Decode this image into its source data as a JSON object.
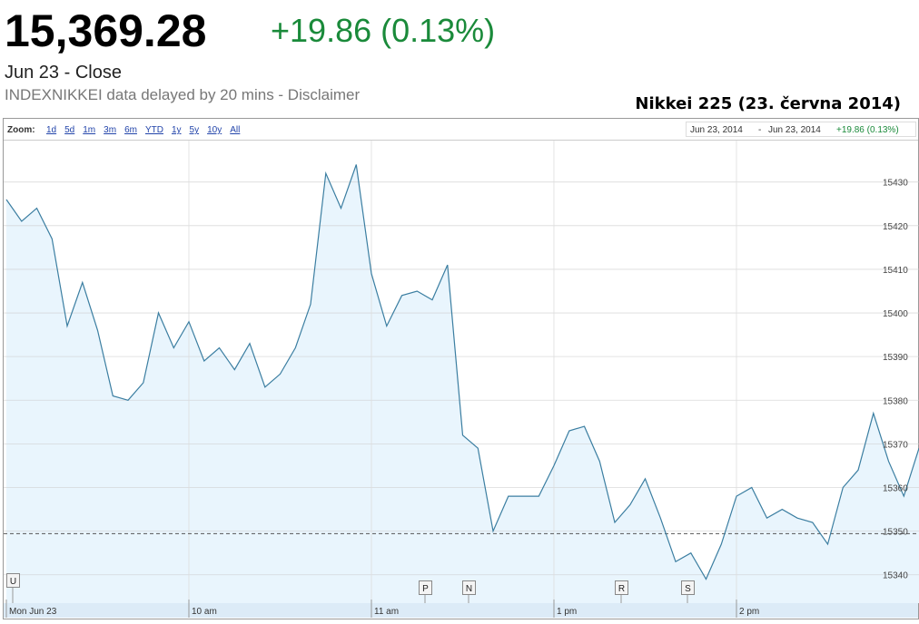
{
  "header": {
    "price": "15,369.28",
    "change": "+19.86 (0.13%)",
    "status": "Jun 23 - Close",
    "disclaimer": "INDEXNIKKEI data delayed by 20 mins - Disclaimer",
    "caption": "Nikkei 225 (23. června 2014)"
  },
  "toolbar": {
    "zoom_label": "Zoom:",
    "zoom_options": [
      "1d",
      "5d",
      "1m",
      "3m",
      "6m",
      "YTD",
      "1y",
      "5y",
      "10y",
      "All"
    ],
    "range_start": "Jun 23, 2014",
    "range_sep": "-",
    "range_end": "Jun 23, 2014",
    "range_change": "+19.86 (0.13%)"
  },
  "markers": [
    "U",
    "P",
    "N",
    "R",
    "S"
  ],
  "chart_data": {
    "type": "line",
    "color": "#3b7ea1",
    "fill": "#e9f5fd",
    "x": [
      0,
      1,
      2,
      3,
      4,
      5,
      6,
      7,
      8,
      9,
      10,
      11,
      12,
      13,
      14,
      15,
      16,
      17,
      18,
      19,
      20,
      21,
      22,
      23,
      24,
      25,
      26,
      27,
      28,
      29,
      30,
      31,
      32,
      33,
      34,
      35,
      36,
      37,
      38,
      39,
      40,
      41,
      42,
      43,
      44,
      45,
      46,
      47,
      48,
      49,
      50,
      51,
      52,
      53,
      54,
      55,
      56,
      57,
      58,
      59,
      60
    ],
    "values": [
      15426,
      15421,
      15424,
      15417,
      15397,
      15407,
      15396,
      15381,
      15380,
      15384,
      15400,
      15392,
      15398,
      15389,
      15392,
      15387,
      15393,
      15383,
      15386,
      15392,
      15402,
      15432,
      15424,
      15434,
      15409,
      15397,
      15404,
      15405,
      15403,
      15411,
      15372,
      15369,
      15350,
      15358,
      15358,
      15358,
      15365,
      15373,
      15374,
      15366,
      15352,
      15356,
      15362,
      15353,
      15343,
      15345,
      15339,
      15347,
      15358,
      15360,
      15353,
      15355,
      15353,
      15352,
      15347,
      15360,
      15364,
      15377,
      15366,
      15358,
      15369
    ],
    "xlim": [
      0,
      60
    ],
    "xticks": [
      {
        "value": 0,
        "label": "Mon Jun 23"
      },
      {
        "value": 12,
        "label": "10 am"
      },
      {
        "value": 24,
        "label": "11 am"
      },
      {
        "value": 36,
        "label": "1 pm"
      },
      {
        "value": 48,
        "label": "2 pm"
      }
    ],
    "ylim": [
      15333.5,
      15439.5
    ],
    "yticks": [
      15340,
      15350,
      15360,
      15370,
      15380,
      15390,
      15400,
      15410,
      15420,
      15430
    ],
    "reference_line": 15349.42,
    "grid": true
  }
}
